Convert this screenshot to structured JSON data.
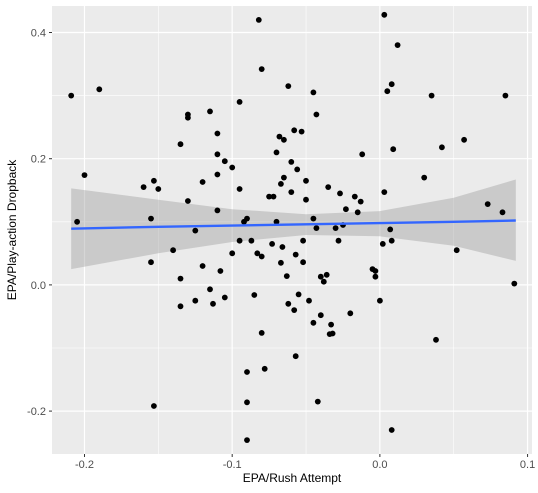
{
  "chart_data": {
    "type": "scatter",
    "title": "",
    "xlabel": "EPA/Rush Attempt",
    "ylabel": "EPA/Play-action Dropback",
    "xlim": [
      -0.222,
      0.103
    ],
    "ylim": [
      -0.268,
      0.442
    ],
    "x_ticks": [
      -0.2,
      -0.1,
      0.0,
      0.1
    ],
    "x_tick_labels": [
      "-0.2",
      "-0.1",
      "0.0",
      "0.1"
    ],
    "y_ticks": [
      -0.2,
      0.0,
      0.2,
      0.4
    ],
    "y_tick_labels": [
      "-0.2",
      "0.0",
      "0.2",
      "0.4"
    ],
    "grid": true,
    "background": "#ebebeb",
    "grid_color": "#ffffff",
    "point_color": "#000000",
    "trend": {
      "type": "linear",
      "color": "#3366ff",
      "band_color": "#999999",
      "x": [
        -0.209,
        -0.15,
        -0.1,
        -0.05,
        0.0,
        0.05,
        0.092
      ],
      "y": [
        0.089,
        0.092,
        0.094,
        0.096,
        0.098,
        0.1,
        0.102
      ],
      "lower": [
        0.025,
        0.05,
        0.068,
        0.079,
        0.077,
        0.062,
        0.038
      ],
      "upper": [
        0.153,
        0.135,
        0.12,
        0.112,
        0.117,
        0.138,
        0.167
      ]
    },
    "points": [
      {
        "x": -0.209,
        "y": 0.3
      },
      {
        "x": -0.205,
        "y": 0.1
      },
      {
        "x": -0.2,
        "y": 0.174
      },
      {
        "x": -0.19,
        "y": 0.31
      },
      {
        "x": -0.16,
        "y": 0.155
      },
      {
        "x": -0.155,
        "y": 0.105
      },
      {
        "x": -0.153,
        "y": 0.165
      },
      {
        "x": -0.155,
        "y": 0.036
      },
      {
        "x": -0.15,
        "y": 0.152
      },
      {
        "x": -0.153,
        "y": -0.192
      },
      {
        "x": -0.14,
        "y": 0.055
      },
      {
        "x": -0.135,
        "y": 0.223
      },
      {
        "x": -0.135,
        "y": 0.01
      },
      {
        "x": -0.135,
        "y": -0.034
      },
      {
        "x": -0.13,
        "y": 0.27
      },
      {
        "x": -0.13,
        "y": 0.265
      },
      {
        "x": -0.13,
        "y": 0.133
      },
      {
        "x": -0.125,
        "y": 0.086
      },
      {
        "x": -0.125,
        "y": -0.025
      },
      {
        "x": -0.12,
        "y": 0.163
      },
      {
        "x": -0.12,
        "y": 0.03
      },
      {
        "x": -0.115,
        "y": 0.275
      },
      {
        "x": -0.115,
        "y": -0.007
      },
      {
        "x": -0.113,
        "y": -0.03
      },
      {
        "x": -0.11,
        "y": 0.24
      },
      {
        "x": -0.11,
        "y": 0.207
      },
      {
        "x": -0.11,
        "y": 0.175
      },
      {
        "x": -0.11,
        "y": 0.118
      },
      {
        "x": -0.108,
        "y": 0.022
      },
      {
        "x": -0.105,
        "y": -0.02
      },
      {
        "x": -0.105,
        "y": 0.196
      },
      {
        "x": -0.1,
        "y": 0.05
      },
      {
        "x": -0.1,
        "y": 0.186
      },
      {
        "x": -0.095,
        "y": 0.152
      },
      {
        "x": -0.095,
        "y": 0.29
      },
      {
        "x": -0.095,
        "y": 0.07
      },
      {
        "x": -0.092,
        "y": 0.1
      },
      {
        "x": -0.09,
        "y": 0.105
      },
      {
        "x": -0.09,
        "y": -0.138
      },
      {
        "x": -0.09,
        "y": -0.186
      },
      {
        "x": -0.09,
        "y": -0.246
      },
      {
        "x": -0.087,
        "y": 0.07
      },
      {
        "x": -0.085,
        "y": -0.016
      },
      {
        "x": -0.083,
        "y": 0.05
      },
      {
        "x": -0.082,
        "y": 0.42
      },
      {
        "x": -0.08,
        "y": 0.342
      },
      {
        "x": -0.08,
        "y": 0.045
      },
      {
        "x": -0.08,
        "y": -0.076
      },
      {
        "x": -0.078,
        "y": -0.133
      },
      {
        "x": -0.075,
        "y": 0.14
      },
      {
        "x": -0.073,
        "y": 0.065
      },
      {
        "x": -0.072,
        "y": 0.14
      },
      {
        "x": -0.07,
        "y": 0.1
      },
      {
        "x": -0.07,
        "y": 0.21
      },
      {
        "x": -0.068,
        "y": 0.235
      },
      {
        "x": -0.067,
        "y": 0.035
      },
      {
        "x": -0.067,
        "y": 0.16
      },
      {
        "x": -0.066,
        "y": 0.06
      },
      {
        "x": -0.065,
        "y": 0.17
      },
      {
        "x": -0.065,
        "y": 0.23
      },
      {
        "x": -0.063,
        "y": 0.014
      },
      {
        "x": -0.062,
        "y": -0.03
      },
      {
        "x": -0.062,
        "y": 0.315
      },
      {
        "x": -0.06,
        "y": 0.195
      },
      {
        "x": -0.06,
        "y": 0.147
      },
      {
        "x": -0.058,
        "y": -0.04
      },
      {
        "x": -0.058,
        "y": 0.245
      },
      {
        "x": -0.057,
        "y": 0.048
      },
      {
        "x": -0.057,
        "y": -0.113
      },
      {
        "x": -0.056,
        "y": 0.183
      },
      {
        "x": -0.055,
        "y": -0.015
      },
      {
        "x": -0.053,
        "y": 0.243
      },
      {
        "x": -0.052,
        "y": 0.07
      },
      {
        "x": -0.052,
        "y": 0.036
      },
      {
        "x": -0.05,
        "y": 0.165
      },
      {
        "x": -0.05,
        "y": 0.135
      },
      {
        "x": -0.048,
        "y": -0.025
      },
      {
        "x": -0.045,
        "y": 0.105
      },
      {
        "x": -0.045,
        "y": -0.06
      },
      {
        "x": -0.045,
        "y": 0.305
      },
      {
        "x": -0.043,
        "y": 0.27
      },
      {
        "x": -0.043,
        "y": 0.09
      },
      {
        "x": -0.042,
        "y": -0.185
      },
      {
        "x": -0.04,
        "y": 0.013
      },
      {
        "x": -0.04,
        "y": -0.048
      },
      {
        "x": -0.038,
        "y": 0.005
      },
      {
        "x": -0.036,
        "y": 0.016
      },
      {
        "x": -0.035,
        "y": 0.155
      },
      {
        "x": -0.034,
        "y": -0.078
      },
      {
        "x": -0.033,
        "y": -0.063
      },
      {
        "x": -0.032,
        "y": -0.077
      },
      {
        "x": -0.03,
        "y": 0.09
      },
      {
        "x": -0.028,
        "y": 0.07
      },
      {
        "x": -0.027,
        "y": 0.145
      },
      {
        "x": -0.025,
        "y": 0.095
      },
      {
        "x": -0.023,
        "y": 0.12
      },
      {
        "x": -0.02,
        "y": -0.045
      },
      {
        "x": -0.017,
        "y": 0.14
      },
      {
        "x": -0.015,
        "y": 0.115
      },
      {
        "x": -0.013,
        "y": 0.132
      },
      {
        "x": -0.012,
        "y": 0.207
      },
      {
        "x": -0.005,
        "y": 0.025
      },
      {
        "x": -0.003,
        "y": 0.013
      },
      {
        "x": -0.003,
        "y": 0.022
      },
      {
        "x": 0.0,
        "y": -0.025
      },
      {
        "x": 0.002,
        "y": 0.065
      },
      {
        "x": 0.003,
        "y": 0.147
      },
      {
        "x": 0.003,
        "y": 0.428
      },
      {
        "x": 0.005,
        "y": 0.307
      },
      {
        "x": 0.007,
        "y": 0.088
      },
      {
        "x": 0.008,
        "y": 0.07
      },
      {
        "x": 0.008,
        "y": 0.318
      },
      {
        "x": 0.009,
        "y": 0.215
      },
      {
        "x": 0.008,
        "y": -0.23
      },
      {
        "x": 0.012,
        "y": 0.38
      },
      {
        "x": 0.03,
        "y": 0.17
      },
      {
        "x": 0.035,
        "y": 0.3
      },
      {
        "x": 0.038,
        "y": -0.087
      },
      {
        "x": 0.042,
        "y": 0.218
      },
      {
        "x": 0.052,
        "y": 0.055
      },
      {
        "x": 0.057,
        "y": 0.23
      },
      {
        "x": 0.073,
        "y": 0.128
      },
      {
        "x": 0.083,
        "y": 0.115
      },
      {
        "x": 0.085,
        "y": 0.3
      },
      {
        "x": 0.091,
        "y": 0.002
      }
    ]
  }
}
